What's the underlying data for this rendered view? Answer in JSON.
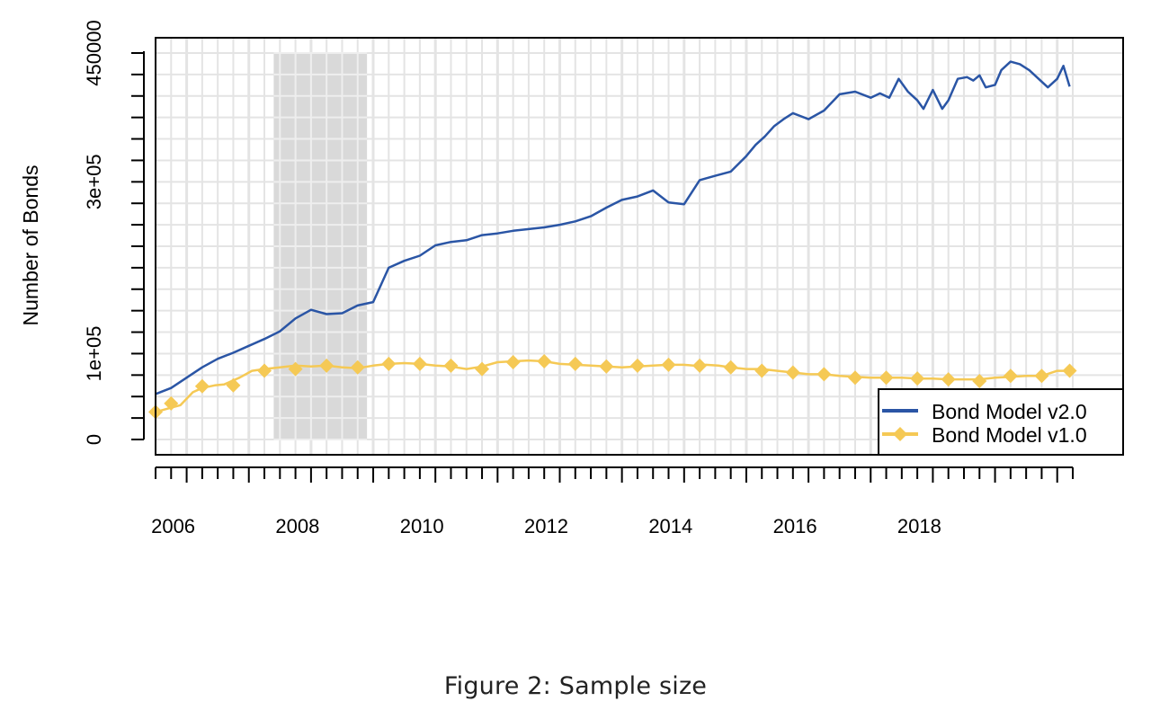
{
  "caption": "Figure 2:   Sample size",
  "colors": {
    "v2": "#2a55a5",
    "v1": "#f5c955",
    "recession": "#d9d9d9",
    "grid": "#e4e4e4"
  },
  "chart_data": {
    "type": "line",
    "title": "",
    "xlabel": "",
    "ylabel": "Number of Bonds",
    "x_tick_labels": [
      "2006",
      "2008",
      "2010",
      "2012",
      "2014",
      "2016",
      "2018"
    ],
    "y_tick_labels": [
      "0",
      "1e+05",
      "3e+05",
      "450000"
    ],
    "xlim": [
      2005.5,
      2020.25
    ],
    "ylim": [
      0,
      450000
    ],
    "grid": true,
    "legend_position": "bottom-right",
    "shaded_region": {
      "from": 2007.4,
      "to": 2008.9
    },
    "series": [
      {
        "name": "Bond Model v2.0",
        "color": "#2a55a5",
        "marker": "none",
        "x": [
          2005.5,
          2005.75,
          2006.0,
          2006.25,
          2006.5,
          2006.75,
          2007.0,
          2007.25,
          2007.5,
          2007.75,
          2008.0,
          2008.25,
          2008.5,
          2008.75,
          2009.0,
          2009.25,
          2009.5,
          2009.75,
          2010.0,
          2010.25,
          2010.5,
          2010.75,
          2011.0,
          2011.25,
          2011.5,
          2011.75,
          2012.0,
          2012.25,
          2012.5,
          2012.75,
          2013.0,
          2013.25,
          2013.5,
          2013.75,
          2014.0,
          2014.25,
          2014.5,
          2014.75,
          2015.0,
          2015.15,
          2015.3,
          2015.45,
          2015.6,
          2015.75,
          2016.0,
          2016.25,
          2016.5,
          2016.75,
          2017.0,
          2017.15,
          2017.3,
          2017.45,
          2017.6,
          2017.75,
          2017.85,
          2018.0,
          2018.15,
          2018.25,
          2018.4,
          2018.55,
          2018.65,
          2018.75,
          2018.85,
          2019.0,
          2019.1,
          2019.25,
          2019.4,
          2019.55,
          2019.7,
          2019.85,
          2020.0,
          2020.1,
          2020.2
        ],
        "y": [
          53000,
          60000,
          72000,
          84000,
          94000,
          101000,
          109000,
          117000,
          126000,
          141000,
          151000,
          146000,
          147000,
          156000,
          160000,
          200000,
          208000,
          214000,
          226000,
          230000,
          232000,
          238000,
          240000,
          243000,
          245000,
          247000,
          250000,
          254000,
          260000,
          270000,
          279000,
          283000,
          290000,
          276000,
          274000,
          302000,
          307000,
          312000,
          330000,
          343000,
          353000,
          365000,
          373000,
          380000,
          373000,
          383000,
          402000,
          405000,
          398000,
          403000,
          398000,
          420000,
          405000,
          395000,
          385000,
          407000,
          385000,
          395000,
          420000,
          422000,
          418000,
          424000,
          410000,
          413000,
          430000,
          440000,
          437000,
          430000,
          420000,
          410000,
          420000,
          435000,
          411000
        ]
      },
      {
        "name": "Bond Model v1.0",
        "color": "#f5c955",
        "marker": "diamond",
        "x": [
          2005.5,
          2005.7,
          2005.9,
          2006.1,
          2006.25,
          2006.45,
          2006.6,
          2006.85,
          2007.05,
          2007.25,
          2007.5,
          2007.75,
          2008.0,
          2008.25,
          2008.5,
          2008.75,
          2009.0,
          2009.25,
          2009.5,
          2009.75,
          2010.0,
          2010.25,
          2010.5,
          2010.75,
          2011.0,
          2011.25,
          2011.5,
          2011.75,
          2012.0,
          2012.25,
          2012.5,
          2012.75,
          2013.0,
          2013.25,
          2013.5,
          2013.75,
          2014.0,
          2014.15,
          2014.35,
          2014.55,
          2014.75,
          2015.0,
          2015.25,
          2015.5,
          2015.75,
          2016.0,
          2016.25,
          2016.5,
          2016.75,
          2017.0,
          2017.25,
          2017.5,
          2017.75,
          2018.0,
          2018.25,
          2018.5,
          2018.75,
          2019.0,
          2019.25,
          2019.5,
          2019.75,
          2020.0,
          2020.2
        ],
        "y": [
          32000,
          36000,
          40000,
          55000,
          60000,
          63000,
          64000,
          72000,
          80000,
          82000,
          84000,
          86000,
          85000,
          86000,
          84000,
          83000,
          86000,
          88000,
          89000,
          88000,
          86000,
          85000,
          82000,
          85000,
          90000,
          91000,
          92000,
          91000,
          88000,
          87000,
          86000,
          85000,
          84000,
          85000,
          86000,
          87000,
          87000,
          86000,
          87000,
          86000,
          84000,
          82000,
          82000,
          80000,
          78000,
          76000,
          76000,
          74000,
          73000,
          72000,
          72000,
          72000,
          71000,
          71000,
          70000,
          70000,
          70000,
          72000,
          73000,
          74000,
          74000,
          80000,
          80000
        ],
        "marker_x": [
          2005.5,
          2005.75,
          2006.25,
          2006.75,
          2007.25,
          2007.75,
          2008.25,
          2008.75,
          2009.25,
          2009.75,
          2010.25,
          2010.75,
          2011.25,
          2011.75,
          2012.25,
          2012.75,
          2013.25,
          2013.75,
          2014.25,
          2014.75,
          2015.25,
          2015.75,
          2016.25,
          2016.75,
          2017.25,
          2017.75,
          2018.25,
          2018.75,
          2019.25,
          2019.75,
          2020.2
        ],
        "marker_y": [
          32000,
          42000,
          62000,
          63000,
          80000,
          82000,
          86000,
          84000,
          88000,
          88000,
          86000,
          82000,
          90000,
          91000,
          88000,
          85000,
          86000,
          87000,
          86000,
          84000,
          80000,
          78000,
          76000,
          72000,
          72000,
          71000,
          70000,
          68000,
          74000,
          74000,
          80000
        ]
      }
    ]
  }
}
